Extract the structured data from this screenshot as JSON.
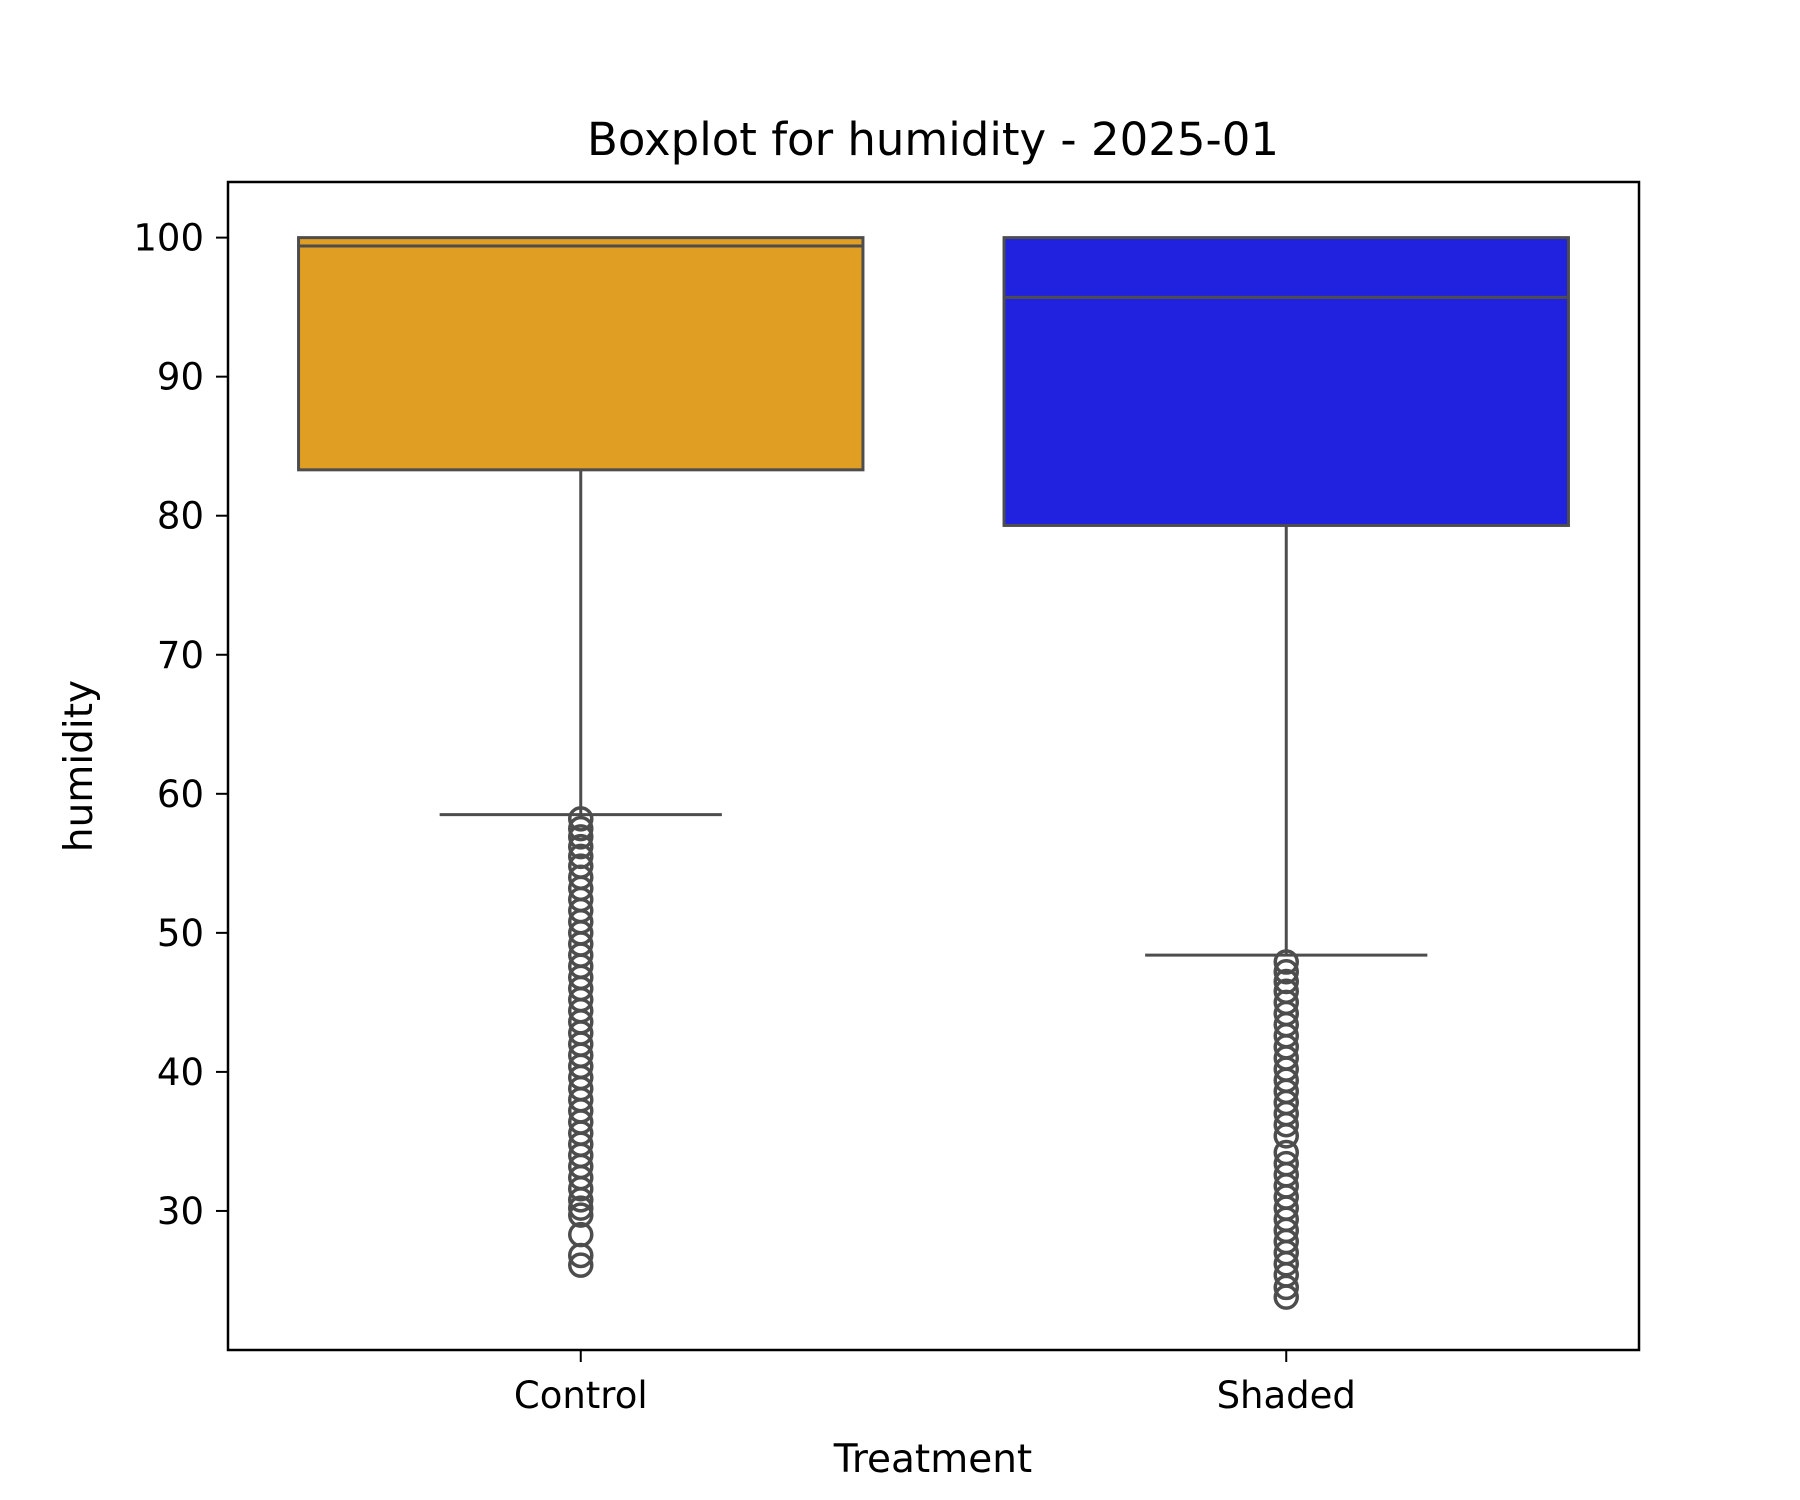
{
  "chart_data": {
    "type": "box",
    "title": "Boxplot for humidity - 2025-01",
    "xlabel": "Treatment",
    "ylabel": "humidity",
    "ylim": [
      20,
      104
    ],
    "yticks": [
      30,
      40,
      50,
      60,
      70,
      80,
      90,
      100
    ],
    "grid": false,
    "categories": [
      "Control",
      "Shaded"
    ],
    "boxes": [
      {
        "category": "Control",
        "color": "#E09E22",
        "q1": 83.3,
        "median": 99.4,
        "q3": 100,
        "whisker_low": 58.5,
        "whisker_high": 100,
        "outliers": [
          58.2,
          57.5,
          56.9,
          56.2,
          55.5,
          54.8,
          54.0,
          53.2,
          52.4,
          51.6,
          50.8,
          50.0,
          49.2,
          48.4,
          47.6,
          46.8,
          46.0,
          45.2,
          44.4,
          43.6,
          42.8,
          42.0,
          41.2,
          40.4,
          39.6,
          38.8,
          38.0,
          37.2,
          36.4,
          35.6,
          34.8,
          34.0,
          33.2,
          32.4,
          31.6,
          30.8,
          30.2,
          29.7,
          28.3,
          26.8,
          26.1
        ]
      },
      {
        "category": "Shaded",
        "color": "#2121E0",
        "q1": 79.3,
        "median": 95.7,
        "q3": 100,
        "whisker_low": 48.4,
        "whisker_high": 100,
        "outliers": [
          47.9,
          47.2,
          46.5,
          45.8,
          45.0,
          44.2,
          43.4,
          42.6,
          41.8,
          41.0,
          40.2,
          39.4,
          38.6,
          37.8,
          37.0,
          36.2,
          35.4,
          34.2,
          33.4,
          32.6,
          31.8,
          31.0,
          30.2,
          29.4,
          28.6,
          27.8,
          27.0,
          26.2,
          25.4,
          24.5,
          23.8
        ]
      }
    ]
  }
}
